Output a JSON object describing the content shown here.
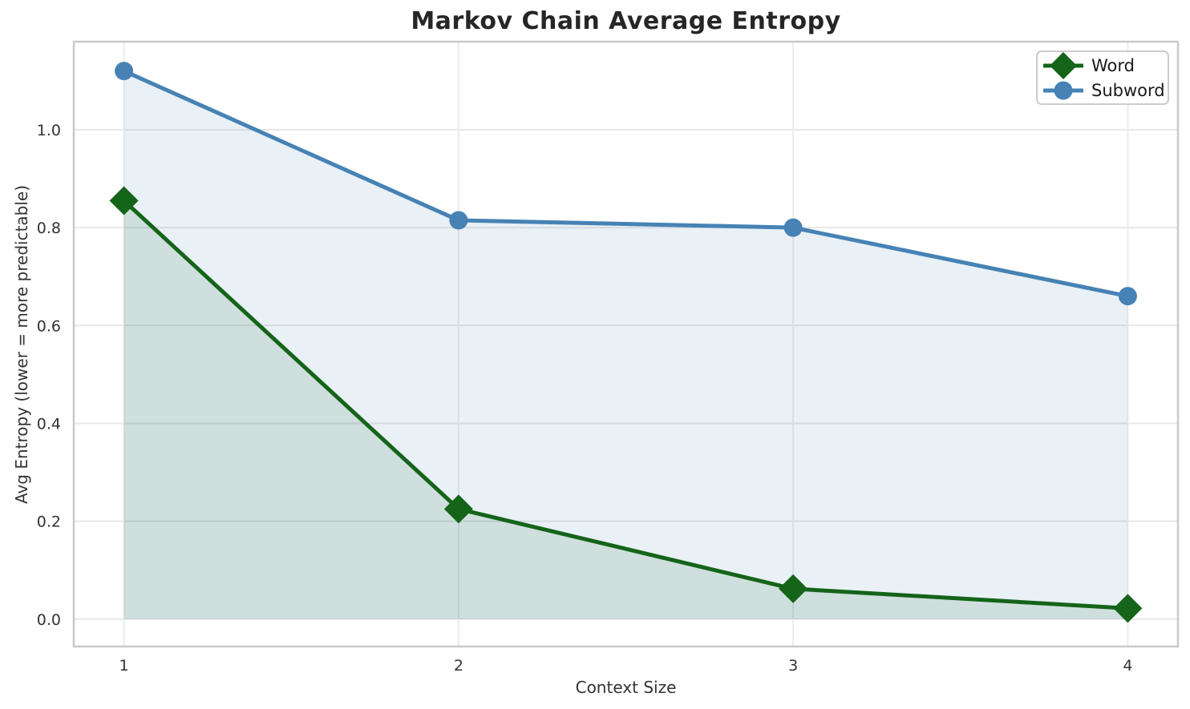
{
  "chart_data": {
    "type": "line",
    "title": "Markov Chain Average Entropy",
    "xlabel": "Context Size",
    "ylabel": "Avg Entropy (lower = more predictable)",
    "x": [
      1,
      2,
      3,
      4
    ],
    "xticks": [
      "1",
      "2",
      "3",
      "4"
    ],
    "yticks": [
      "0.0",
      "0.2",
      "0.4",
      "0.6",
      "0.8",
      "1.0"
    ],
    "ytick_values": [
      0.0,
      0.2,
      0.4,
      0.6,
      0.8,
      1.0
    ],
    "xlim": [
      0.85,
      4.15
    ],
    "ylim": [
      -0.056,
      1.18
    ],
    "grid": true,
    "legend_position": "upper right",
    "area_fill_to_zero": true,
    "series": [
      {
        "name": "Word",
        "marker": "diamond",
        "color": "#146419",
        "values": [
          0.855,
          0.225,
          0.062,
          0.022
        ]
      },
      {
        "name": "Subword",
        "marker": "circle",
        "color": "#4682b4",
        "values": [
          1.12,
          0.815,
          0.8,
          0.66
        ]
      }
    ]
  }
}
